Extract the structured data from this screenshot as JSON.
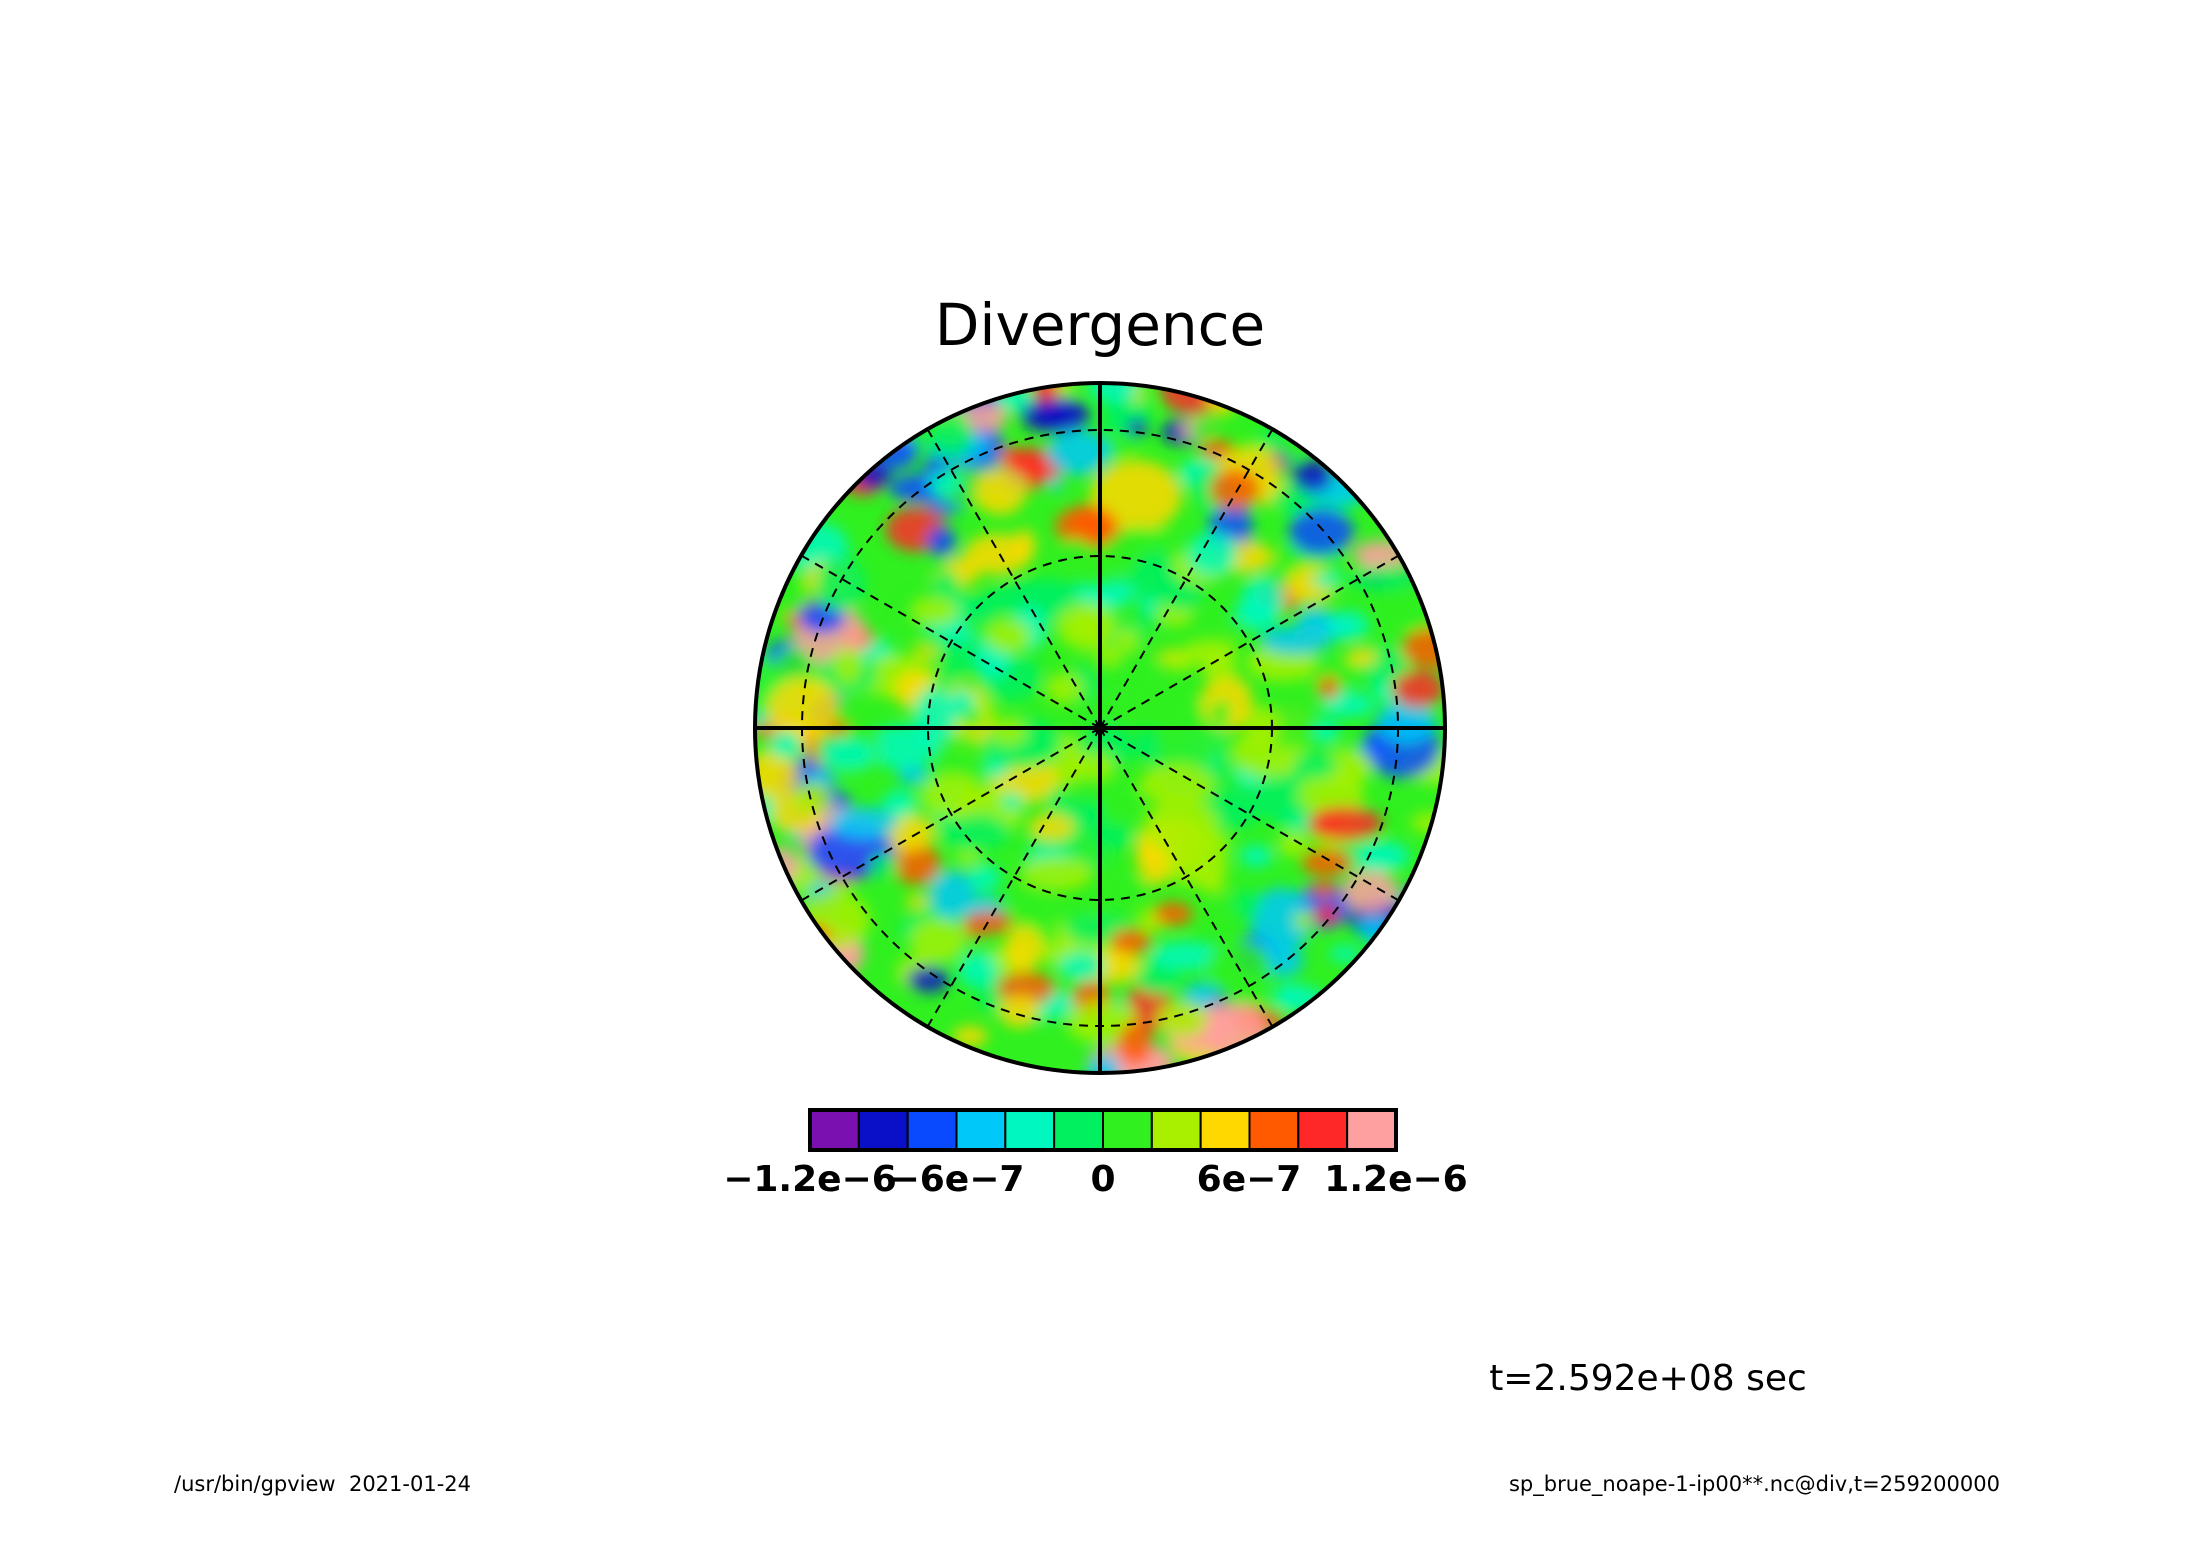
{
  "chart_data": {
    "type": "heatmap",
    "projection": "polar-stereographic",
    "title": "Divergence",
    "time_label": "t=2.592e+08 sec",
    "footer_left": "/usr/bin/gpview  2021-01-24",
    "footer_right": "sp_brue_noape-1-ip00**.nc@div,t=259200000",
    "grid": true,
    "colorbar": {
      "orientation": "horizontal",
      "placement": "bottom",
      "colors": [
        "#7a10b0",
        "#0a10c8",
        "#0a4aff",
        "#00c8f8",
        "#00f8c0",
        "#00f060",
        "#30f020",
        "#a8f000",
        "#ffd800",
        "#ff5a00",
        "#ff2828",
        "#ffa0a0"
      ],
      "tick_labels": [
        "−1.2e−6",
        "−6e−7",
        "0",
        "6e−7",
        "1.2e−6"
      ],
      "tick_values": [
        -1.2e-06,
        -6e-07,
        0,
        6e-07,
        1.2e-06
      ],
      "range": [
        -1.5e-06,
        1.5e-06
      ],
      "interval": 2.5e-07
    }
  }
}
